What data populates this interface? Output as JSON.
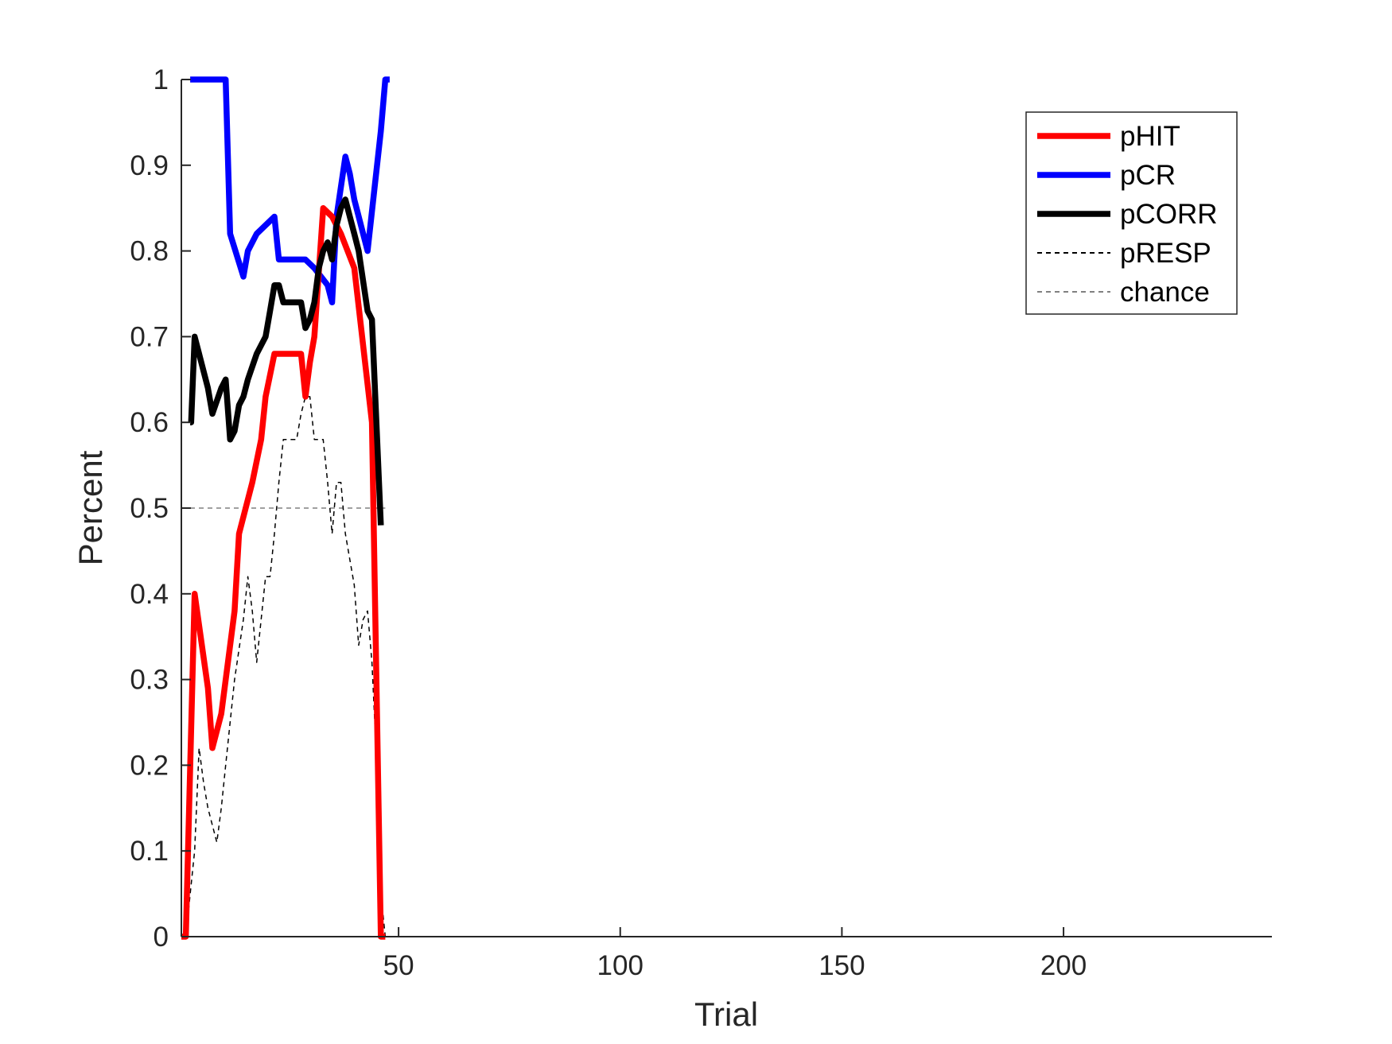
{
  "chart_data": {
    "type": "line",
    "xlabel": "Trial",
    "ylabel": "Percent",
    "xlim": [
      1,
      247
    ],
    "ylim": [
      0,
      1
    ],
    "xticks": [
      50,
      100,
      150,
      200
    ],
    "yticks": [
      0,
      0.1,
      0.2,
      0.3,
      0.4,
      0.5,
      0.6,
      0.7,
      0.8,
      0.9,
      1
    ],
    "grid": false,
    "legend_position": "top-right",
    "series": [
      {
        "name": "pHIT",
        "color": "#ff0000",
        "style": "solid-thick",
        "x": [
          1,
          2,
          4,
          7,
          8,
          10,
          13,
          14,
          17,
          19,
          20,
          22,
          24,
          28,
          29,
          30,
          31,
          33,
          35,
          37,
          40,
          44,
          46,
          47
        ],
        "y": [
          0,
          0,
          0.4,
          0.29,
          0.22,
          0.26,
          0.38,
          0.47,
          0.53,
          0.58,
          0.63,
          0.68,
          0.68,
          0.68,
          0.63,
          0.67,
          0.7,
          0.85,
          0.84,
          0.82,
          0.78,
          0.6,
          0,
          0
        ]
      },
      {
        "name": "pCR",
        "color": "#0000ff",
        "style": "solid-thick",
        "x": [
          3,
          11,
          12,
          15,
          16,
          18,
          22,
          23,
          24,
          28,
          29,
          31,
          34,
          35,
          36,
          38,
          39,
          40,
          43,
          46,
          47,
          48
        ],
        "y": [
          1,
          1,
          0.82,
          0.77,
          0.8,
          0.82,
          0.84,
          0.79,
          0.79,
          0.79,
          0.79,
          0.78,
          0.76,
          0.74,
          0.84,
          0.91,
          0.89,
          0.86,
          0.8,
          0.94,
          1,
          1
        ]
      },
      {
        "name": "pCORR",
        "color": "#000000",
        "style": "solid-thick",
        "x": [
          3,
          3.2,
          4,
          5,
          7,
          8,
          10,
          11,
          12,
          13,
          14,
          15,
          16,
          18,
          20,
          21,
          22,
          23,
          24,
          28,
          29,
          30,
          31,
          32,
          33,
          34,
          35,
          36,
          37,
          38,
          39,
          40,
          41,
          43,
          44,
          45,
          46
        ],
        "y": [
          0.6,
          0.6,
          0.7,
          0.68,
          0.64,
          0.61,
          0.64,
          0.65,
          0.58,
          0.59,
          0.62,
          0.63,
          0.65,
          0.68,
          0.7,
          0.73,
          0.76,
          0.76,
          0.74,
          0.74,
          0.71,
          0.72,
          0.74,
          0.78,
          0.8,
          0.81,
          0.79,
          0.83,
          0.85,
          0.86,
          0.84,
          0.82,
          0.8,
          0.73,
          0.72,
          0.6,
          0.48
        ]
      },
      {
        "name": "pRESP",
        "color": "#000000",
        "style": "dashed-thin",
        "x": [
          2,
          3,
          4,
          5,
          6,
          7,
          9,
          10,
          11,
          13,
          15,
          16,
          17,
          18,
          19,
          20,
          21,
          22,
          23,
          24,
          25,
          26,
          27,
          28,
          29,
          30,
          31,
          32,
          33,
          34,
          35,
          36,
          37,
          38,
          39,
          40,
          41,
          42,
          43,
          44,
          45,
          46,
          47
        ],
        "y": [
          0,
          0.05,
          0.1,
          0.22,
          0.18,
          0.15,
          0.11,
          0.15,
          0.2,
          0.3,
          0.37,
          0.42,
          0.38,
          0.32,
          0.37,
          0.42,
          0.42,
          0.47,
          0.53,
          0.58,
          0.58,
          0.58,
          0.58,
          0.61,
          0.63,
          0.63,
          0.58,
          0.58,
          0.58,
          0.53,
          0.47,
          0.53,
          0.53,
          0.47,
          0.44,
          0.41,
          0.34,
          0.37,
          0.38,
          0.32,
          0.21,
          0.05,
          0
        ]
      }
    ],
    "reference_line": {
      "name": "chance",
      "color": "#808080",
      "style": "dashed-thin",
      "x": [
        1,
        47
      ],
      "y": 0.5
    }
  }
}
